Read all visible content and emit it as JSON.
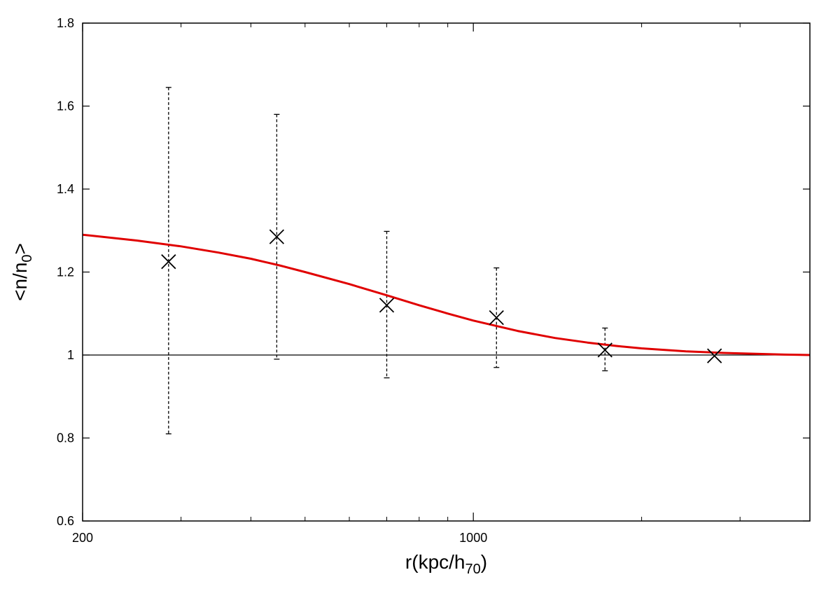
{
  "chart_data": {
    "type": "scatter",
    "title": "",
    "xlabel": {
      "prefix": "r(kpc/h",
      "sub": "70",
      "suffix": ")"
    },
    "ylabel": {
      "prefix": "<n/n",
      "sub": "0",
      "suffix": ">"
    },
    "x_scale": "log",
    "xlim": [
      200,
      4000
    ],
    "ylim": [
      0.6,
      1.8
    ],
    "x_ticks": [
      {
        "value": 200,
        "label": "200"
      },
      {
        "value": 1000,
        "label": "1000"
      }
    ],
    "x_minor_ticks": [
      300,
      400,
      500,
      600,
      700,
      800,
      900,
      2000,
      3000
    ],
    "y_ticks": [
      {
        "value": 0.6,
        "label": "0.6"
      },
      {
        "value": 0.8,
        "label": "0.8"
      },
      {
        "value": 1.0,
        "label": "1"
      },
      {
        "value": 1.2,
        "label": "1.2"
      },
      {
        "value": 1.4,
        "label": "1.4"
      },
      {
        "value": 1.6,
        "label": "1.6"
      },
      {
        "value": 1.8,
        "label": "1.8"
      }
    ],
    "grid": false,
    "reference_line": {
      "y": 1.0,
      "color": "#000000"
    },
    "series": [
      {
        "kind": "points_with_errorbars",
        "marker": "x",
        "color": "#000000",
        "points": [
          {
            "x": 285,
            "y": 1.225,
            "ylow": 0.81,
            "yhigh": 1.645
          },
          {
            "x": 445,
            "y": 1.285,
            "ylow": 0.99,
            "yhigh": 1.58
          },
          {
            "x": 700,
            "y": 1.12,
            "ylow": 0.945,
            "yhigh": 1.298
          },
          {
            "x": 1100,
            "y": 1.09,
            "ylow": 0.97,
            "yhigh": 1.21
          },
          {
            "x": 1720,
            "y": 1.012,
            "ylow": 0.962,
            "yhigh": 1.065
          },
          {
            "x": 2700,
            "y": 0.998
          }
        ]
      },
      {
        "kind": "curve",
        "color": "#e00000",
        "x": [
          200,
          250,
          300,
          350,
          400,
          450,
          500,
          600,
          700,
          800,
          900,
          1000,
          1200,
          1400,
          1600,
          1800,
          2000,
          2400,
          2800,
          3200,
          3600,
          4000
        ],
        "y": [
          1.29,
          1.276,
          1.262,
          1.247,
          1.232,
          1.216,
          1.2,
          1.171,
          1.144,
          1.12,
          1.1,
          1.083,
          1.058,
          1.041,
          1.03,
          1.022,
          1.016,
          1.009,
          1.005,
          1.003,
          1.001,
          1.0
        ]
      }
    ]
  }
}
